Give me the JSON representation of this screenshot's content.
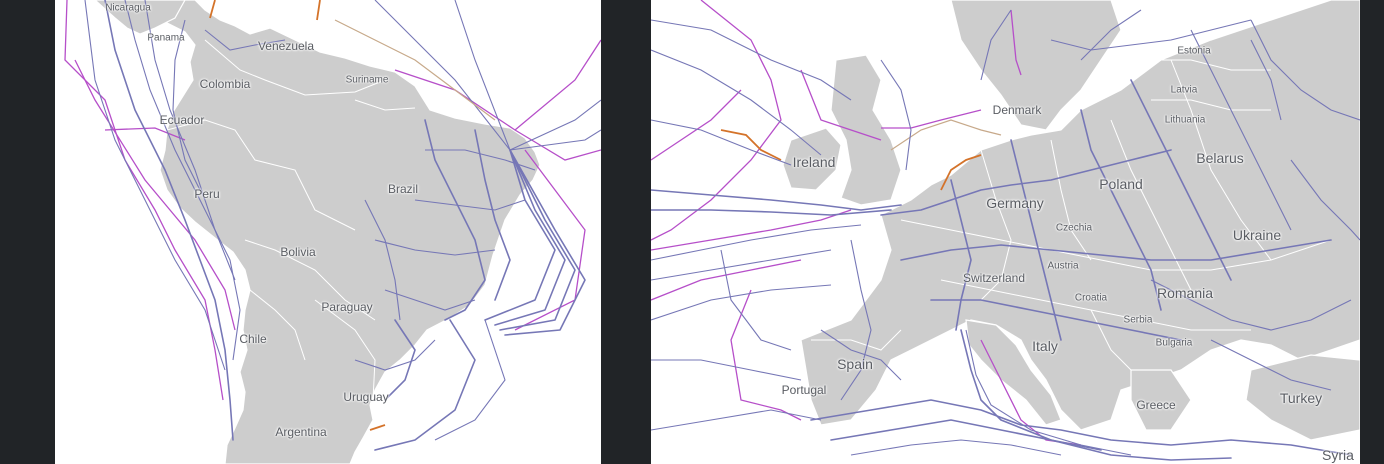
{
  "south_america": {
    "labels": {
      "nicaragua": "Nicaragua",
      "panama": "Panama",
      "venezuela": "Venezuela",
      "suriname": "Suriname",
      "colombia": "Colombia",
      "ecuador": "Ecuador",
      "peru": "Peru",
      "brazil": "Brazil",
      "bolivia": "Bolivia",
      "paraguay": "Paraguay",
      "chile": "Chile",
      "uruguay": "Uruguay",
      "argentina": "Argentina"
    }
  },
  "europe": {
    "labels": {
      "estonia": "Estonia",
      "latvia": "Latvia",
      "lithuania": "Lithuania",
      "denmark": "Denmark",
      "belarus": "Belarus",
      "ireland": "Ireland",
      "poland": "Poland",
      "germany": "Germany",
      "czechia": "Czechia",
      "ukraine": "Ukraine",
      "austria": "Austria",
      "switzerland": "Switzerland",
      "croatia": "Croatia",
      "romania": "Romania",
      "serbia": "Serbia",
      "italy": "Italy",
      "bulgaria": "Bulgaria",
      "spain": "Spain",
      "portugal": "Portugal",
      "greece": "Greece",
      "turkey": "Turkey",
      "syria": "Syria"
    }
  },
  "colors": {
    "background": "#212427",
    "land": "#cdcdcd",
    "cable": "#7677b6",
    "cable_magenta": "#b64fc9",
    "cable_orange": "#d4732a"
  }
}
